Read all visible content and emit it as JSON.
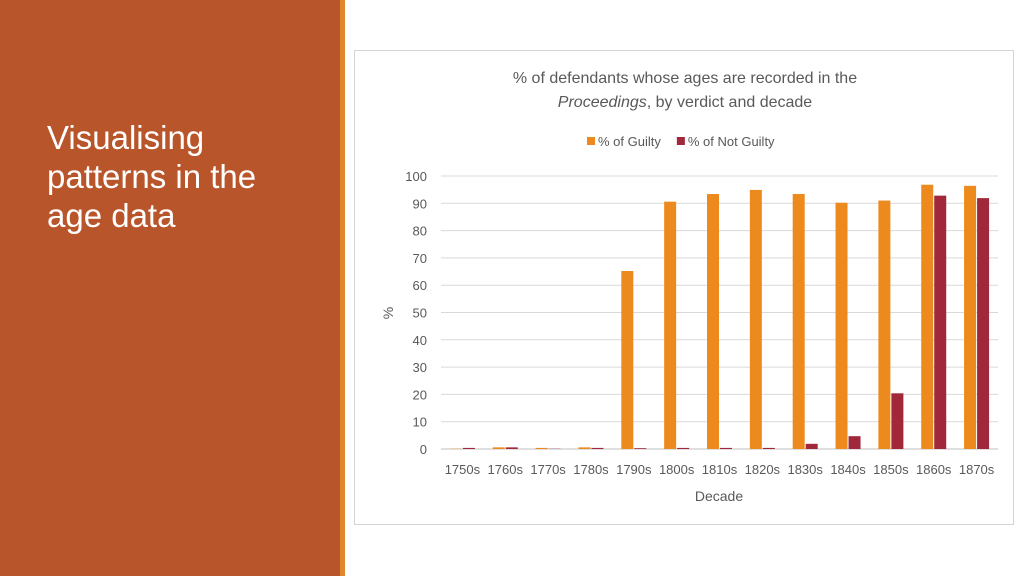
{
  "slide": {
    "title": "Visualising patterns in the age data"
  },
  "colors": {
    "background_left": "#b9552a",
    "accent": "#e0862f",
    "guilty": "#ed8a1e",
    "not_guilty": "#a0283a"
  },
  "chart_data": {
    "type": "bar",
    "title_line1": "% of defendants whose ages are recorded in the",
    "title_line2_italic": "Proceedings",
    "title_line2_rest": ", by verdict and decade",
    "xlabel": "Decade",
    "ylabel": "%",
    "ylim": [
      0,
      100
    ],
    "yticks": [
      0,
      10,
      20,
      30,
      40,
      50,
      60,
      70,
      80,
      90,
      100
    ],
    "grid": true,
    "legend_position": "top",
    "categories": [
      "1750s",
      "1760s",
      "1770s",
      "1780s",
      "1790s",
      "1800s",
      "1810s",
      "1820s",
      "1830s",
      "1840s",
      "1850s",
      "1860s",
      "1870s"
    ],
    "series": [
      {
        "name": "% of Guilty",
        "color": "#ed8a1e",
        "values": [
          0.1,
          0.6,
          0.4,
          0.6,
          65.2,
          90.6,
          93.4,
          94.9,
          93.4,
          90.2,
          91.0,
          96.8,
          96.4
        ]
      },
      {
        "name": "% of Not Guilty",
        "color": "#a0283a",
        "values": [
          0.4,
          0.6,
          0.1,
          0.4,
          0.3,
          0.4,
          0.4,
          0.4,
          1.9,
          4.7,
          20.4,
          92.8,
          91.9
        ]
      }
    ]
  }
}
